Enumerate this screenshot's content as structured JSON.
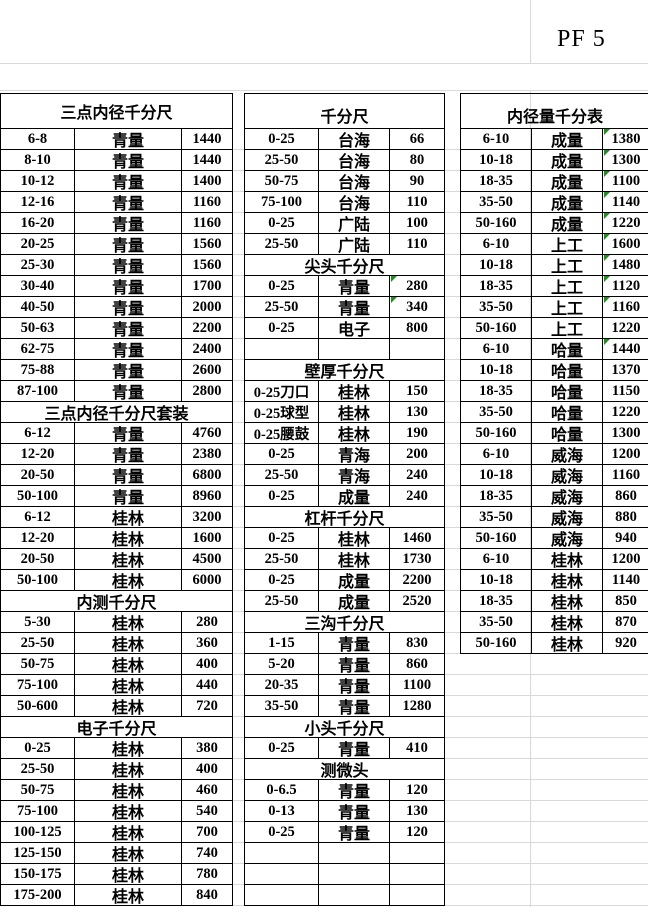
{
  "sheet_code": "PF  5",
  "blocks": [
    {
      "id": "left",
      "rows": [
        {
          "title": "三点内径千分尺"
        },
        {
          "size": "6-8",
          "brand": "青量",
          "price": "1440"
        },
        {
          "size": "8-10",
          "brand": "青量",
          "price": "1440"
        },
        {
          "size": "10-12",
          "brand": "青量",
          "price": "1400"
        },
        {
          "size": "12-16",
          "brand": "青量",
          "price": "1160"
        },
        {
          "size": "16-20",
          "brand": "青量",
          "price": "1160"
        },
        {
          "size": "20-25",
          "brand": "青量",
          "price": "1560"
        },
        {
          "size": "25-30",
          "brand": "青量",
          "price": "1560"
        },
        {
          "size": "30-40",
          "brand": "青量",
          "price": "1700"
        },
        {
          "size": "40-50",
          "brand": "青量",
          "price": "2000"
        },
        {
          "size": "50-63",
          "brand": "青量",
          "price": "2200"
        },
        {
          "size": "62-75",
          "brand": "青量",
          "price": "2400"
        },
        {
          "size": "75-88",
          "brand": "青量",
          "price": "2600"
        },
        {
          "size": "87-100",
          "brand": "青量",
          "price": "2800"
        },
        {
          "title": "三点内径千分尺套装"
        },
        {
          "size": "6-12",
          "brand": "青量",
          "price": "4760"
        },
        {
          "size": "12-20",
          "brand": "青量",
          "price": "2380"
        },
        {
          "size": "20-50",
          "brand": "青量",
          "price": "6800"
        },
        {
          "size": "50-100",
          "brand": "青量",
          "price": "8960"
        },
        {
          "size": "6-12",
          "brand": "桂林",
          "price": "3200"
        },
        {
          "size": "12-20",
          "brand": "桂林",
          "price": "1600"
        },
        {
          "size": "20-50",
          "brand": "桂林",
          "price": "4500"
        },
        {
          "size": "50-100",
          "brand": "桂林",
          "price": "6000"
        },
        {
          "title": "内测千分尺"
        },
        {
          "size": "5-30",
          "brand": "桂林",
          "price": "280"
        },
        {
          "size": "25-50",
          "brand": "桂林",
          "price": "360"
        },
        {
          "size": "50-75",
          "brand": "桂林",
          "price": "400"
        },
        {
          "size": "75-100",
          "brand": "桂林",
          "price": "440"
        },
        {
          "size": "50-600",
          "brand": "桂林",
          "price": "720"
        },
        {
          "title": "电子千分尺"
        },
        {
          "size": "0-25",
          "brand": "桂林",
          "price": "380"
        },
        {
          "size": "25-50",
          "brand": "桂林",
          "price": "400"
        },
        {
          "size": "50-75",
          "brand": "桂林",
          "price": "460"
        },
        {
          "size": "75-100",
          "brand": "桂林",
          "price": "540"
        },
        {
          "size": "100-125",
          "brand": "桂林",
          "price": "700"
        },
        {
          "size": "125-150",
          "brand": "桂林",
          "price": "740"
        },
        {
          "size": "150-175",
          "brand": "桂林",
          "price": "780"
        },
        {
          "size": "175-200",
          "brand": "桂林",
          "price": "840"
        }
      ]
    },
    {
      "id": "middle",
      "rows": [
        {
          "title": "千分尺"
        },
        {
          "size": "0-25",
          "brand": "台海",
          "price": "66"
        },
        {
          "size": "25-50",
          "brand": "台海",
          "price": "80"
        },
        {
          "size": "50-75",
          "brand": "台海",
          "price": "90"
        },
        {
          "size": "75-100",
          "brand": "台海",
          "price": "110"
        },
        {
          "size": "0-25",
          "brand": "广陆",
          "price": "100"
        },
        {
          "size": "25-50",
          "brand": "广陆",
          "price": "110"
        },
        {
          "title": "尖头千分尺"
        },
        {
          "size": "0-25",
          "brand": "青量",
          "price": "280",
          "flag": true
        },
        {
          "size": "25-50",
          "brand": "青量",
          "price": "340",
          "flag": true
        },
        {
          "size": "0-25",
          "brand": "电子",
          "price": "800"
        },
        {
          "size": "",
          "brand": "",
          "price": ""
        },
        {
          "title": "壁厚千分尺"
        },
        {
          "size": "0-25刀口",
          "brand": "桂林",
          "price": "150"
        },
        {
          "size": "0-25球型",
          "brand": "桂林",
          "price": "130"
        },
        {
          "size": "0-25腰鼓",
          "brand": "桂林",
          "price": "190"
        },
        {
          "size": "0-25",
          "brand": "青海",
          "price": "200"
        },
        {
          "size": "25-50",
          "brand": "青海",
          "price": "240"
        },
        {
          "size": "0-25",
          "brand": "成量",
          "price": "240"
        },
        {
          "title": "杠杆千分尺"
        },
        {
          "size": "0-25",
          "brand": "桂林",
          "price": "1460"
        },
        {
          "size": "25-50",
          "brand": "桂林",
          "price": "1730"
        },
        {
          "size": "0-25",
          "brand": "成量",
          "price": "2200"
        },
        {
          "size": "25-50",
          "brand": "成量",
          "price": "2520"
        },
        {
          "title": "三沟千分尺"
        },
        {
          "size": "1-15",
          "brand": "青量",
          "price": "830"
        },
        {
          "size": "5-20",
          "brand": "青量",
          "price": "860"
        },
        {
          "size": "20-35",
          "brand": "青量",
          "price": "1100"
        },
        {
          "size": "35-50",
          "brand": "青量",
          "price": "1280"
        },
        {
          "title": "小头千分尺"
        },
        {
          "size": "0-25",
          "brand": "青量",
          "price": "410"
        },
        {
          "title": "测微头"
        },
        {
          "size": "0-6.5",
          "brand": "青量",
          "price": "120"
        },
        {
          "size": "0-13",
          "brand": "青量",
          "price": "130"
        },
        {
          "size": "0-25",
          "brand": "青量",
          "price": "120"
        },
        {
          "size": "",
          "brand": "",
          "price": ""
        },
        {
          "size": "",
          "brand": "",
          "price": ""
        },
        {
          "size": "",
          "brand": "",
          "price": ""
        }
      ]
    },
    {
      "id": "right",
      "rows": [
        {
          "title": "内径量千分表"
        },
        {
          "size": "6-10",
          "brand": "成量",
          "price": "1380",
          "flag": true
        },
        {
          "size": "10-18",
          "brand": "成量",
          "price": "1300",
          "flag": true
        },
        {
          "size": "18-35",
          "brand": "成量",
          "price": "1100",
          "flag": true
        },
        {
          "size": "35-50",
          "brand": "成量",
          "price": "1140",
          "flag": true
        },
        {
          "size": "50-160",
          "brand": "成量",
          "price": "1220",
          "flag": true
        },
        {
          "size": "6-10",
          "brand": "上工",
          "price": "1600",
          "flag": true
        },
        {
          "size": "10-18",
          "brand": "上工",
          "price": "1480",
          "flag": true
        },
        {
          "size": "18-35",
          "brand": "上工",
          "price": "1120",
          "flag": true
        },
        {
          "size": "35-50",
          "brand": "上工",
          "price": "1160",
          "flag": true
        },
        {
          "size": "50-160",
          "brand": "上工",
          "price": "1220"
        },
        {
          "size": "6-10",
          "brand": "哈量",
          "price": "1440",
          "flag": true
        },
        {
          "size": "10-18",
          "brand": "哈量",
          "price": "1370"
        },
        {
          "size": "18-35",
          "brand": "哈量",
          "price": "1150"
        },
        {
          "size": "35-50",
          "brand": "哈量",
          "price": "1220"
        },
        {
          "size": "50-160",
          "brand": "哈量",
          "price": "1300"
        },
        {
          "size": "6-10",
          "brand": "威海",
          "price": "1200"
        },
        {
          "size": "10-18",
          "brand": "威海",
          "price": "1160"
        },
        {
          "size": "18-35",
          "brand": "威海",
          "price": "860"
        },
        {
          "size": "35-50",
          "brand": "威海",
          "price": "880"
        },
        {
          "size": "50-160",
          "brand": "威海",
          "price": "940"
        },
        {
          "size": "6-10",
          "brand": "桂林",
          "price": "1200"
        },
        {
          "size": "10-18",
          "brand": "桂林",
          "price": "1140"
        },
        {
          "size": "18-35",
          "brand": "桂林",
          "price": "850"
        },
        {
          "size": "35-50",
          "brand": "桂林",
          "price": "870"
        },
        {
          "size": "50-160",
          "brand": "桂林",
          "price": "920"
        }
      ]
    }
  ]
}
